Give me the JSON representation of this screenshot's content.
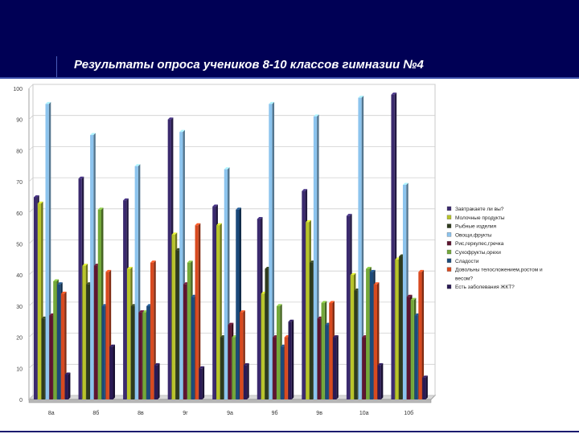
{
  "slide": {
    "title": "Результаты опроса учеников 8-10 классов гимназии №4"
  },
  "chart_data": {
    "type": "bar",
    "categories": [
      "8а",
      "8б",
      "8в",
      "9г",
      "9а",
      "9б",
      "9в",
      "10а",
      "10б"
    ],
    "ylim": [
      0,
      100
    ],
    "yticks": [
      0,
      10,
      20,
      30,
      40,
      50,
      60,
      70,
      80,
      90,
      100
    ],
    "legend_position": "right",
    "grid": true,
    "series": [
      {
        "name": "Завтракаете ли вы?",
        "color": "#3b2a6e",
        "values": [
          65,
          71,
          64,
          90,
          62,
          58,
          67,
          59,
          98
        ]
      },
      {
        "name": "Молочные продукты",
        "color": "#b8c42a",
        "values": [
          63,
          43,
          42,
          53,
          56,
          34,
          57,
          40,
          45
        ]
      },
      {
        "name": "Рыбные изделия",
        "color": "#2e3b1e",
        "values": [
          26,
          37,
          30,
          48,
          20,
          42,
          44,
          35,
          46
        ]
      },
      {
        "name": "Овощи,фрукты",
        "color": "#8cc4ee",
        "values": [
          95,
          85,
          75,
          86,
          74,
          95,
          91,
          97,
          69
        ]
      },
      {
        "name": "Рис,геркулес,гречка",
        "color": "#5e1530",
        "values": [
          27,
          43,
          28,
          37,
          24,
          20,
          26,
          20,
          33
        ]
      },
      {
        "name": "Сухофрукты,орехи",
        "color": "#74a83a",
        "values": [
          38,
          61,
          28,
          44,
          20,
          30,
          31,
          42,
          32
        ]
      },
      {
        "name": "Сладости",
        "color": "#1c4a7a",
        "values": [
          37,
          30,
          30,
          33,
          61,
          17,
          24,
          41,
          27
        ]
      },
      {
        "name": "Довольны телосложением,ростом и весом?",
        "color": "#d84a20",
        "values": [
          34,
          41,
          44,
          56,
          28,
          20,
          31,
          37,
          41
        ]
      },
      {
        "name": "Есть заболевания ЖКТ?",
        "color": "#2a1a55",
        "values": [
          8,
          17,
          11,
          10,
          11,
          25,
          20,
          11,
          7
        ]
      }
    ]
  }
}
